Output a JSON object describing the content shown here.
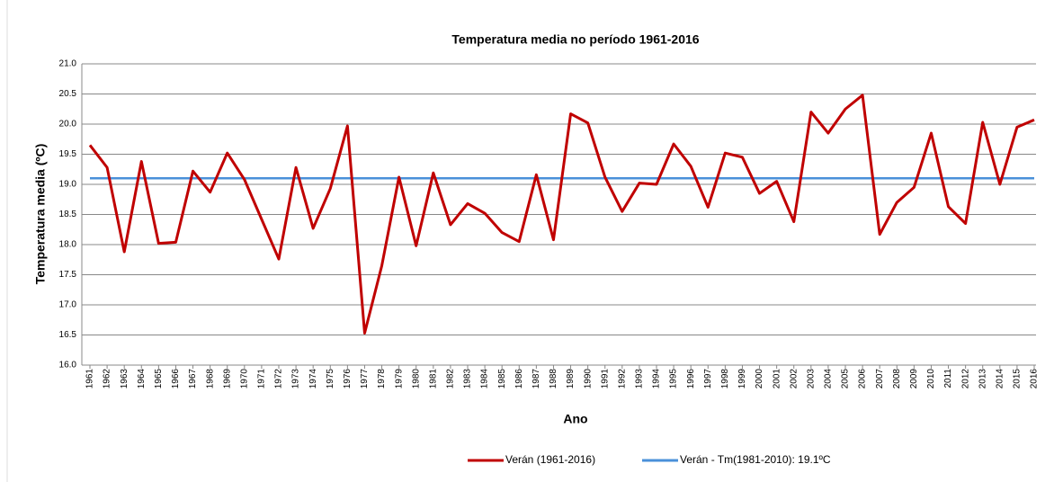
{
  "chart_data": {
    "type": "line",
    "title": "Temperatura media no período 1961-2016",
    "x_label": "Ano",
    "y_label": "Temperatura media  (ºC)",
    "categories": [
      "1961",
      "1962",
      "1963",
      "1964",
      "1965",
      "1966",
      "1967",
      "1968",
      "1969",
      "1970",
      "1971",
      "1972",
      "1973",
      "1974",
      "1975",
      "1976",
      "1977",
      "1978",
      "1979",
      "1980",
      "1981",
      "1982",
      "1983",
      "1984",
      "1985",
      "1986",
      "1987",
      "1988",
      "1989",
      "1990",
      "1991",
      "1992",
      "1993",
      "1994",
      "1995",
      "1996",
      "1997",
      "1998",
      "1999",
      "2000",
      "2001",
      "2002",
      "2003",
      "2004",
      "2005",
      "2006",
      "2007",
      "2008",
      "2009",
      "2010",
      "2011",
      "2012",
      "2013",
      "2014",
      "2015",
      "2016"
    ],
    "series": [
      {
        "name": "Verán (1961-2016)",
        "color": "#c00000",
        "values": [
          19.65,
          19.28,
          17.88,
          19.38,
          18.02,
          18.04,
          19.22,
          18.87,
          19.52,
          19.08,
          18.42,
          17.76,
          19.28,
          18.27,
          18.93,
          19.97,
          16.53,
          17.65,
          19.12,
          17.98,
          19.19,
          18.33,
          18.68,
          18.52,
          18.2,
          18.05,
          19.16,
          18.08,
          20.17,
          20.02,
          19.12,
          18.55,
          19.02,
          19.0,
          19.67,
          19.3,
          18.62,
          19.52,
          19.45,
          18.85,
          19.05,
          18.38,
          20.2,
          19.85,
          20.25,
          20.48,
          18.17,
          18.7,
          18.95,
          19.85,
          18.63,
          18.35,
          20.03,
          19.0,
          19.95,
          20.07
        ]
      },
      {
        "name": "Verán - Tm(1981-2010): 19.1ºC",
        "color": "#4a90d9",
        "values": [
          19.1,
          19.1,
          19.1,
          19.1,
          19.1,
          19.1,
          19.1,
          19.1,
          19.1,
          19.1,
          19.1,
          19.1,
          19.1,
          19.1,
          19.1,
          19.1,
          19.1,
          19.1,
          19.1,
          19.1,
          19.1,
          19.1,
          19.1,
          19.1,
          19.1,
          19.1,
          19.1,
          19.1,
          19.1,
          19.1,
          19.1,
          19.1,
          19.1,
          19.1,
          19.1,
          19.1,
          19.1,
          19.1,
          19.1,
          19.1,
          19.1,
          19.1,
          19.1,
          19.1,
          19.1,
          19.1,
          19.1,
          19.1,
          19.1,
          19.1,
          19.1,
          19.1,
          19.1,
          19.1,
          19.1,
          19.1
        ]
      }
    ],
    "ylim": [
      16.0,
      21.0
    ],
    "yticks": [
      {
        "value": 16,
        "label": "16.0"
      },
      16.5,
      {
        "value": 17,
        "label": "17.0"
      },
      17.5,
      {
        "value": 18,
        "label": "18.0"
      },
      18.5,
      {
        "value": 19,
        "label": "19.0"
      },
      19.5,
      {
        "value": 20,
        "label": "20.0"
      },
      20.5,
      {
        "value": 21,
        "label": "21.0"
      }
    ],
    "grid": true,
    "legend": "bottom"
  }
}
